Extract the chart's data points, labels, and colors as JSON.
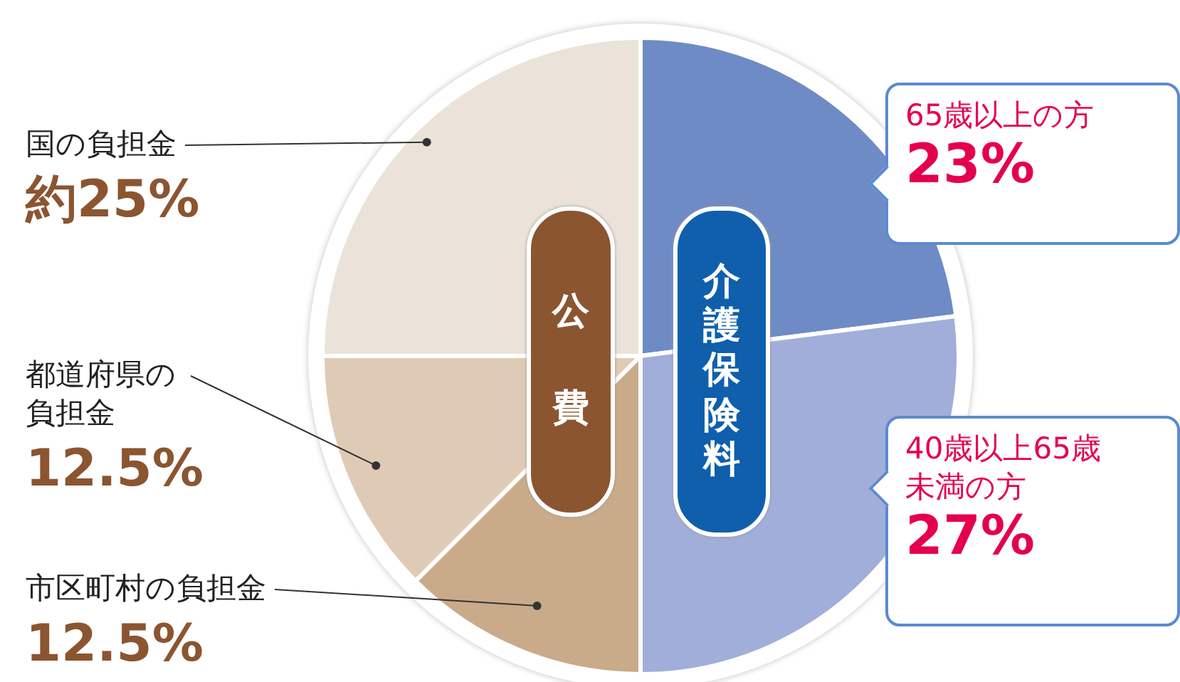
{
  "chart_data": {
    "type": "pie",
    "categories": [
      "65歳以上の方",
      "40歳以上65歳未満の方",
      "市区町村の負担金",
      "都道府県の負担金",
      "国の負担金"
    ],
    "values": [
      23,
      27,
      12.5,
      12.5,
      25
    ],
    "colors": [
      "#6f8bc6",
      "#a1aed9",
      "#c9ab8a",
      "#dfcbb5",
      "#ebe3d9"
    ],
    "value_labels": [
      "23%",
      "27%",
      "12.5%",
      "12.5%",
      "約25%"
    ],
    "annotations": [
      "公費",
      "介護保険料"
    ],
    "legend": false
  }
}
